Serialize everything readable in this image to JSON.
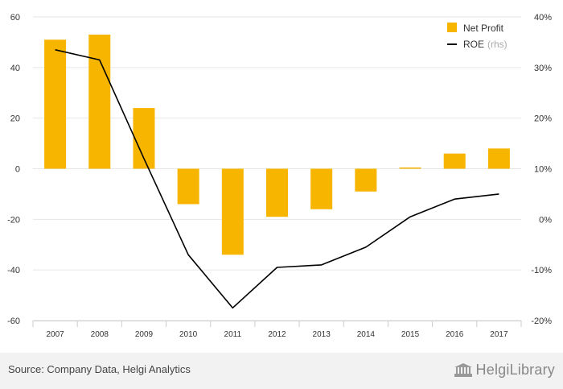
{
  "chart_data": {
    "type": "bar",
    "categories": [
      "2007",
      "2008",
      "2009",
      "2010",
      "2011",
      "2012",
      "2013",
      "2014",
      "2015",
      "2016",
      "2017"
    ],
    "series": [
      {
        "name": "Net Profit",
        "kind": "bar",
        "axis": "left",
        "color": "#f7b500",
        "values": [
          51,
          53,
          24,
          -14,
          -34,
          -19,
          -16,
          -9,
          0.5,
          6,
          8
        ]
      },
      {
        "name": "ROE",
        "name_suffix": "(rhs)",
        "kind": "line",
        "axis": "right",
        "color": "#000000",
        "values": [
          33.5,
          31.5,
          12,
          -7,
          -17.5,
          -9.5,
          -9,
          -5.5,
          0.5,
          4,
          5
        ]
      }
    ],
    "y_left": {
      "min": -60,
      "max": 60,
      "ticks": [
        60,
        40,
        20,
        0,
        -20,
        -40,
        -60
      ]
    },
    "y_right": {
      "min": -20,
      "max": 40,
      "ticks": [
        40,
        30,
        20,
        10,
        0,
        -10,
        -20
      ],
      "tick_suffix": "%"
    },
    "grid": true,
    "legend_position": "top-right"
  },
  "footer": {
    "source": "Source: Company Data, Helgi Analytics",
    "brand": "HelgiLibrary",
    "brand_icon": "building-icon"
  }
}
